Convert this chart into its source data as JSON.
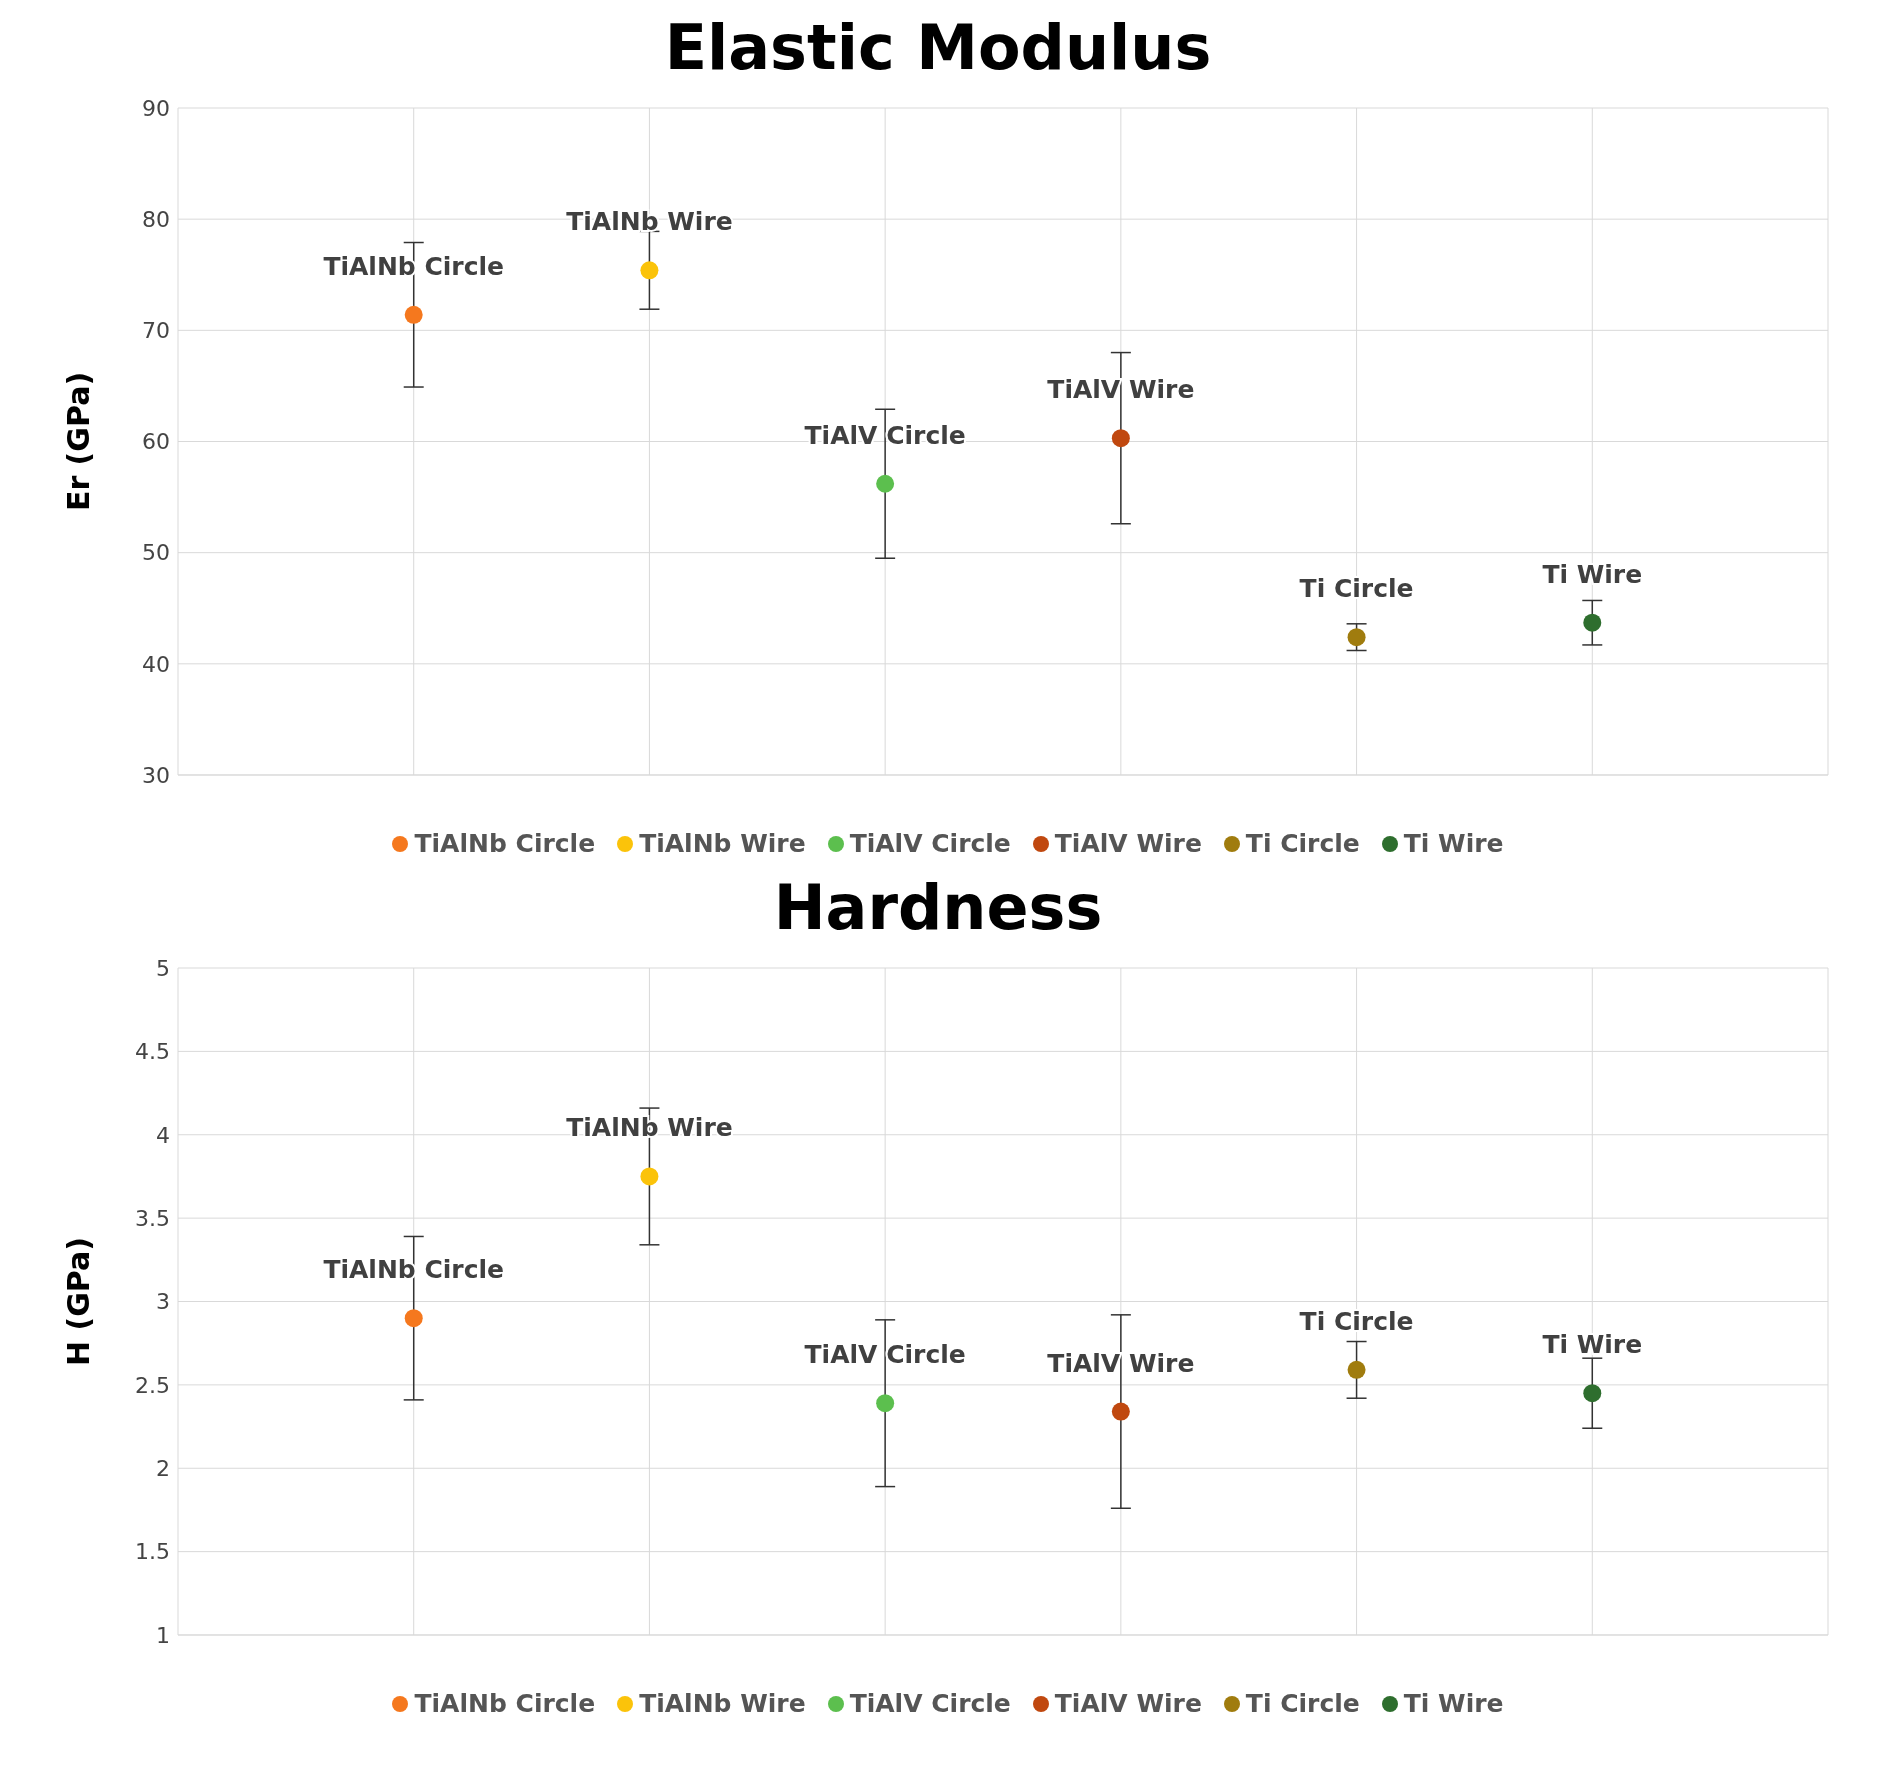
{
  "chart_data": [
    {
      "type": "scatter",
      "title": "Elastic Modulus",
      "ylabel": "Er (GPa)",
      "categories": [
        null,
        null,
        null,
        null,
        null,
        null
      ],
      "ylim": [
        30,
        90
      ],
      "yticks": [
        30,
        40,
        50,
        60,
        70,
        80,
        90
      ],
      "grid": true,
      "legend": "bottom",
      "marker": "circle",
      "series": [
        {
          "name": "TiAlNb Circle",
          "color": "#f5781e",
          "values": [
            71.4,
            null,
            null,
            null,
            null,
            null
          ],
          "errors": [
            6.5,
            null,
            null,
            null,
            null,
            null
          ],
          "value_labels": [
            "TiAlNb Circle",
            null,
            null,
            null,
            null,
            null
          ]
        },
        {
          "name": "TiAlNb Wire",
          "color": "#fbc30a",
          "values": [
            null,
            75.4,
            null,
            null,
            null,
            null
          ],
          "errors": [
            null,
            3.5,
            null,
            null,
            null,
            null
          ],
          "value_labels": [
            null,
            "TiAlNb Wire",
            null,
            null,
            null,
            null
          ]
        },
        {
          "name": "TiAlV Circle",
          "color": "#5cbf4e",
          "values": [
            null,
            null,
            56.2,
            null,
            null,
            null
          ],
          "errors": [
            null,
            null,
            6.7,
            null,
            null,
            null
          ],
          "value_labels": [
            null,
            null,
            "TiAlV Circle",
            null,
            null,
            null
          ]
        },
        {
          "name": "TiAlV Wire",
          "color": "#c0480f",
          "values": [
            null,
            null,
            null,
            60.3,
            null,
            null
          ],
          "errors": [
            null,
            null,
            null,
            7.7,
            null,
            null
          ],
          "value_labels": [
            null,
            null,
            null,
            "TiAlV Wire",
            null,
            null
          ]
        },
        {
          "name": "Ti Circle",
          "color": "#a07c0e",
          "values": [
            null,
            null,
            null,
            null,
            42.4,
            null
          ],
          "errors": [
            null,
            null,
            null,
            null,
            1.2,
            null
          ],
          "value_labels": [
            null,
            null,
            null,
            null,
            "Ti Circle",
            null
          ]
        },
        {
          "name": "Ti Wire",
          "color": "#2e6e2e",
          "values": [
            null,
            null,
            null,
            null,
            null,
            43.7
          ],
          "errors": [
            null,
            null,
            null,
            null,
            null,
            2
          ],
          "value_labels": [
            null,
            null,
            null,
            null,
            null,
            "Ti Wire"
          ]
        }
      ]
    },
    {
      "type": "scatter",
      "title": "Hardness",
      "ylabel": "H (GPa)",
      "categories": [
        null,
        null,
        null,
        null,
        null,
        null
      ],
      "ylim": [
        1,
        5
      ],
      "yticks": [
        1,
        1.5,
        2,
        2.5,
        3,
        3.5,
        4,
        4.5,
        5
      ],
      "grid": true,
      "legend": "bottom",
      "marker": "circle",
      "series": [
        {
          "name": "TiAlNb Circle",
          "color": "#f5781e",
          "values": [
            2.9,
            null,
            null,
            null,
            null,
            null
          ],
          "errors": [
            0.49,
            null,
            null,
            null,
            null,
            null
          ],
          "value_labels": [
            "TiAlNb Circle",
            null,
            null,
            null,
            null,
            null
          ]
        },
        {
          "name": "TiAlNb Wire",
          "color": "#fbc30a",
          "values": [
            null,
            3.75,
            null,
            null,
            null,
            null
          ],
          "errors": [
            null,
            0.41,
            null,
            null,
            null,
            null
          ],
          "value_labels": [
            null,
            "TiAlNb Wire",
            null,
            null,
            null,
            null
          ]
        },
        {
          "name": "TiAlV Circle",
          "color": "#5cbf4e",
          "values": [
            null,
            null,
            2.39,
            null,
            null,
            null
          ],
          "errors": [
            null,
            null,
            0.5,
            null,
            null,
            null
          ],
          "value_labels": [
            null,
            null,
            "TiAlV Circle",
            null,
            null,
            null
          ]
        },
        {
          "name": "TiAlV Wire",
          "color": "#c0480f",
          "values": [
            null,
            null,
            null,
            2.34,
            null,
            null
          ],
          "errors": [
            null,
            null,
            null,
            0.58,
            null,
            null
          ],
          "value_labels": [
            null,
            null,
            null,
            "TiAlV Wire",
            null,
            null
          ]
        },
        {
          "name": "Ti Circle",
          "color": "#a07c0e",
          "values": [
            null,
            null,
            null,
            null,
            2.59,
            null
          ],
          "errors": [
            null,
            null,
            null,
            null,
            0.17,
            null
          ],
          "value_labels": [
            null,
            null,
            null,
            null,
            "Ti Circle",
            null
          ]
        },
        {
          "name": "Ti Wire",
          "color": "#2e6e2e",
          "values": [
            null,
            null,
            null,
            null,
            null,
            2.45
          ],
          "errors": [
            null,
            null,
            null,
            null,
            null,
            0.21
          ],
          "value_labels": [
            null,
            null,
            null,
            null,
            null,
            "Ti Wire"
          ]
        }
      ]
    }
  ]
}
